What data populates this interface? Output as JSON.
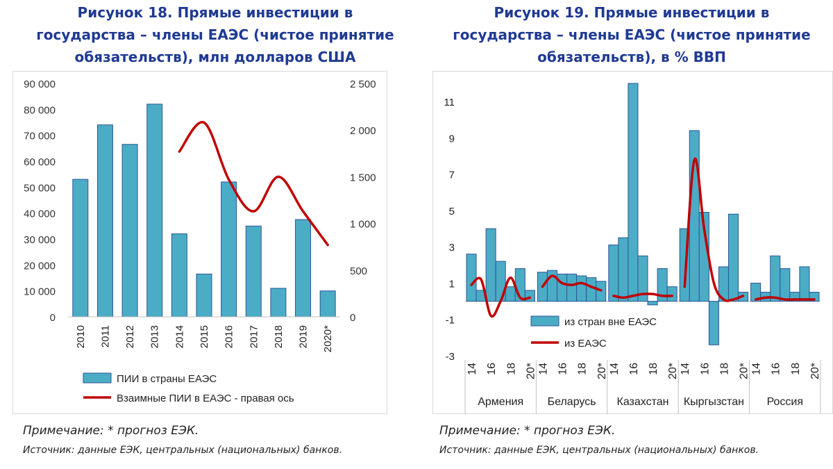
{
  "figure18": {
    "title_lines": [
      "Рисунок 18. Прямые инвестиции в",
      "государства – члены ЕАЭС (чистое принятие",
      "обязательств), млн долларов США"
    ],
    "note": "Примечание: * прогноз ЕЭК.",
    "source": "Источник: данные ЕЭК, центральных (национальных) банков."
  },
  "figure19": {
    "title_lines": [
      "Рисунок 19. Прямые инвестиции в",
      "государства – члены ЕАЭС (чистое принятие",
      "обязательств), в % ВВП"
    ],
    "note": "Примечание: * прогноз ЕЭК.",
    "source": "Источник: данные ЕЭК, центральных (национальных) банков."
  },
  "chart_data": [
    {
      "type": "bar",
      "categories": [
        "2010",
        "2011",
        "2012",
        "2013",
        "2014",
        "2015",
        "2016",
        "2017",
        "2018",
        "2019",
        "2020*"
      ],
      "series": [
        {
          "name": "ПИИ в страны ЕАЭС",
          "type": "bar",
          "axis": "left",
          "color": "#4bacc6",
          "values": [
            53000,
            74000,
            66500,
            82000,
            32000,
            16500,
            52000,
            35000,
            11000,
            37500,
            10000
          ]
        },
        {
          "name": "Взаимные ПИИ в ЕАЭС - правая ось",
          "type": "line",
          "axis": "right",
          "color": "#c00000",
          "values": [
            null,
            null,
            null,
            null,
            1770,
            2080,
            1470,
            1130,
            1500,
            1130,
            770
          ]
        }
      ],
      "left_axis": {
        "ylim": [
          0,
          90000
        ],
        "ticks": [
          "0",
          "10 000",
          "20 000",
          "30 000",
          "40 000",
          "50 000",
          "60 000",
          "70 000",
          "80 000",
          "90 000"
        ]
      },
      "right_axis": {
        "ylim": [
          0,
          2500
        ],
        "ticks": [
          "0",
          "500",
          "1 000",
          "1 500",
          "2 000",
          "2 500"
        ]
      },
      "legend_position": "bottom"
    },
    {
      "type": "bar",
      "groups": [
        {
          "name": "Армения",
          "tick_labels": [
            "14",
            "16",
            "18",
            "20*"
          ],
          "bars": [
            2.6,
            0.6,
            4.0,
            2.2,
            0.8,
            1.8,
            0.6
          ],
          "line": [
            0.9,
            1.2,
            -0.8,
            0.0,
            1.3,
            0.2,
            0.2
          ]
        },
        {
          "name": "Беларусь",
          "tick_labels": [
            "14",
            "16",
            "18",
            "20*"
          ],
          "bars": [
            1.6,
            1.7,
            1.5,
            1.5,
            1.4,
            1.3,
            1.1
          ],
          "line": [
            0.8,
            1.4,
            1.0,
            0.9,
            1.0,
            0.8,
            0.6
          ]
        },
        {
          "name": "Казахстан",
          "tick_labels": [
            "14",
            "16",
            "18",
            "20*"
          ],
          "bars": [
            3.1,
            3.5,
            12.0,
            2.5,
            -0.2,
            1.8,
            0.8
          ],
          "line": [
            0.3,
            0.2,
            0.3,
            0.4,
            0.4,
            0.3,
            0.3
          ]
        },
        {
          "name": "Кыргызстан",
          "tick_labels": [
            "14",
            "16",
            "18",
            "20*"
          ],
          "bars": [
            4.0,
            9.4,
            4.9,
            -2.4,
            1.9,
            4.8,
            0.5
          ],
          "line": [
            0.8,
            7.8,
            4.0,
            1.0,
            0.1,
            0.1,
            0.3
          ]
        },
        {
          "name": "Россия",
          "tick_labels": [
            "14",
            "16",
            "18",
            "20*"
          ],
          "bars": [
            1.0,
            0.5,
            2.5,
            1.8,
            0.5,
            1.9,
            0.5
          ],
          "line": [
            0.1,
            0.2,
            0.2,
            0.1,
            0.1,
            0.1,
            0.1
          ]
        }
      ],
      "series": [
        {
          "name": "из стран вне ЕАЭС",
          "type": "bar",
          "color": "#4bacc6"
        },
        {
          "name": "из ЕАЭС",
          "type": "line",
          "color": "#c00000"
        }
      ],
      "yaxis": {
        "ylim": [
          -3,
          12
        ],
        "ticks": [
          "11",
          "9",
          "7",
          "5",
          "3",
          "1",
          "-1",
          "-3"
        ]
      },
      "legend_position": "inside-bottom-left"
    }
  ]
}
